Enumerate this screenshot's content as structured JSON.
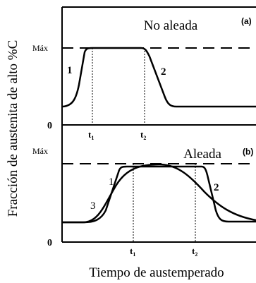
{
  "figure": {
    "y_axis_label": "Fracción de austenita de alto %C",
    "x_axis_label": "Tiempo de austemperado",
    "line_color": "#000000",
    "background": "#ffffff"
  },
  "panels": [
    {
      "id": "a",
      "tag": "(a)",
      "title": "No aleada",
      "max_label": "Máx",
      "zero_label": "0",
      "t1_label": "t",
      "t1_sub": "1",
      "t2_label": "t",
      "t2_sub": "2",
      "curve_labels": [
        "1",
        "2"
      ]
    },
    {
      "id": "b",
      "tag": "(b)",
      "title": "Aleada",
      "max_label": "Máx",
      "zero_label": "0",
      "t1_label": "t",
      "t1_sub": "1",
      "t2_label": "t",
      "t2_sub": "2",
      "curve_labels": [
        "1",
        "2",
        "3"
      ]
    }
  ]
}
